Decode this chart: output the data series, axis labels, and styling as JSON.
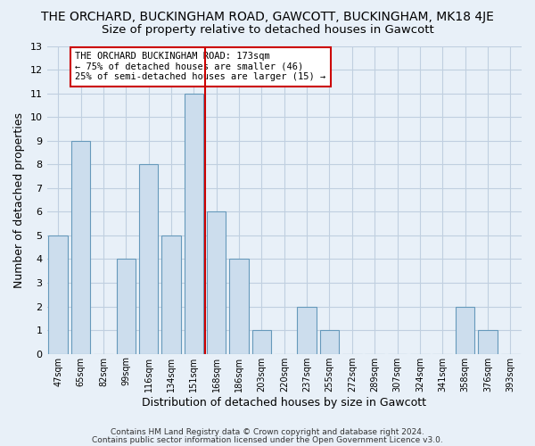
{
  "title": "THE ORCHARD, BUCKINGHAM ROAD, GAWCOTT, BUCKINGHAM, MK18 4JE",
  "subtitle": "Size of property relative to detached houses in Gawcott",
  "xlabel": "Distribution of detached houses by size in Gawcott",
  "ylabel": "Number of detached properties",
  "bar_labels": [
    "47sqm",
    "65sqm",
    "82sqm",
    "99sqm",
    "116sqm",
    "134sqm",
    "151sqm",
    "168sqm",
    "186sqm",
    "203sqm",
    "220sqm",
    "237sqm",
    "255sqm",
    "272sqm",
    "289sqm",
    "307sqm",
    "324sqm",
    "341sqm",
    "358sqm",
    "376sqm",
    "393sqm"
  ],
  "bar_values": [
    5,
    9,
    0,
    4,
    8,
    5,
    11,
    6,
    4,
    1,
    0,
    2,
    1,
    0,
    0,
    0,
    0,
    0,
    2,
    1,
    0
  ],
  "bar_color": "#ccdded",
  "bar_edge_color": "#6699bb",
  "highlight_line_color": "#cc0000",
  "highlight_line_index": 6.5,
  "ylim": [
    0,
    13
  ],
  "yticks": [
    0,
    1,
    2,
    3,
    4,
    5,
    6,
    7,
    8,
    9,
    10,
    11,
    12,
    13
  ],
  "annotation_title": "THE ORCHARD BUCKINGHAM ROAD: 173sqm",
  "annotation_line1": "← 75% of detached houses are smaller (46)",
  "annotation_line2": "25% of semi-detached houses are larger (15) →",
  "footer1": "Contains HM Land Registry data © Crown copyright and database right 2024.",
  "footer2": "Contains public sector information licensed under the Open Government Licence v3.0.",
  "background_color": "#e8f0f8",
  "grid_color": "#c0cfe0",
  "title_fontsize": 10,
  "subtitle_fontsize": 9.5
}
